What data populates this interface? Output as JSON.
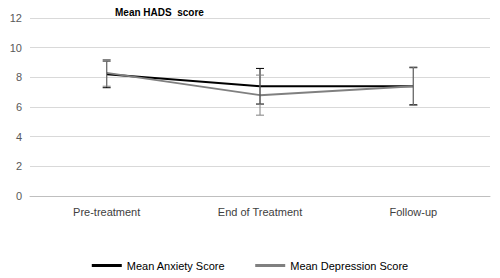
{
  "chart_data": {
    "type": "line",
    "title": "Mean HADS  score",
    "categories": [
      "Pre-treatment",
      "End of Treatment",
      "Follow-up"
    ],
    "series": [
      {
        "name": "Mean Anxiety Score",
        "color": "#000000",
        "values": [
          8.2,
          7.4,
          7.4
        ],
        "errors": [
          0.9,
          1.2,
          1.25
        ]
      },
      {
        "name": "Mean Depression Score",
        "color": "#808080",
        "values": [
          8.3,
          6.8,
          7.4
        ],
        "errors": [
          0.9,
          1.35,
          1.3
        ]
      }
    ],
    "ylim": [
      0,
      12
    ],
    "yticks": [
      0,
      2,
      4,
      6,
      8,
      10,
      12
    ],
    "grid": true,
    "legend": "bottom"
  }
}
